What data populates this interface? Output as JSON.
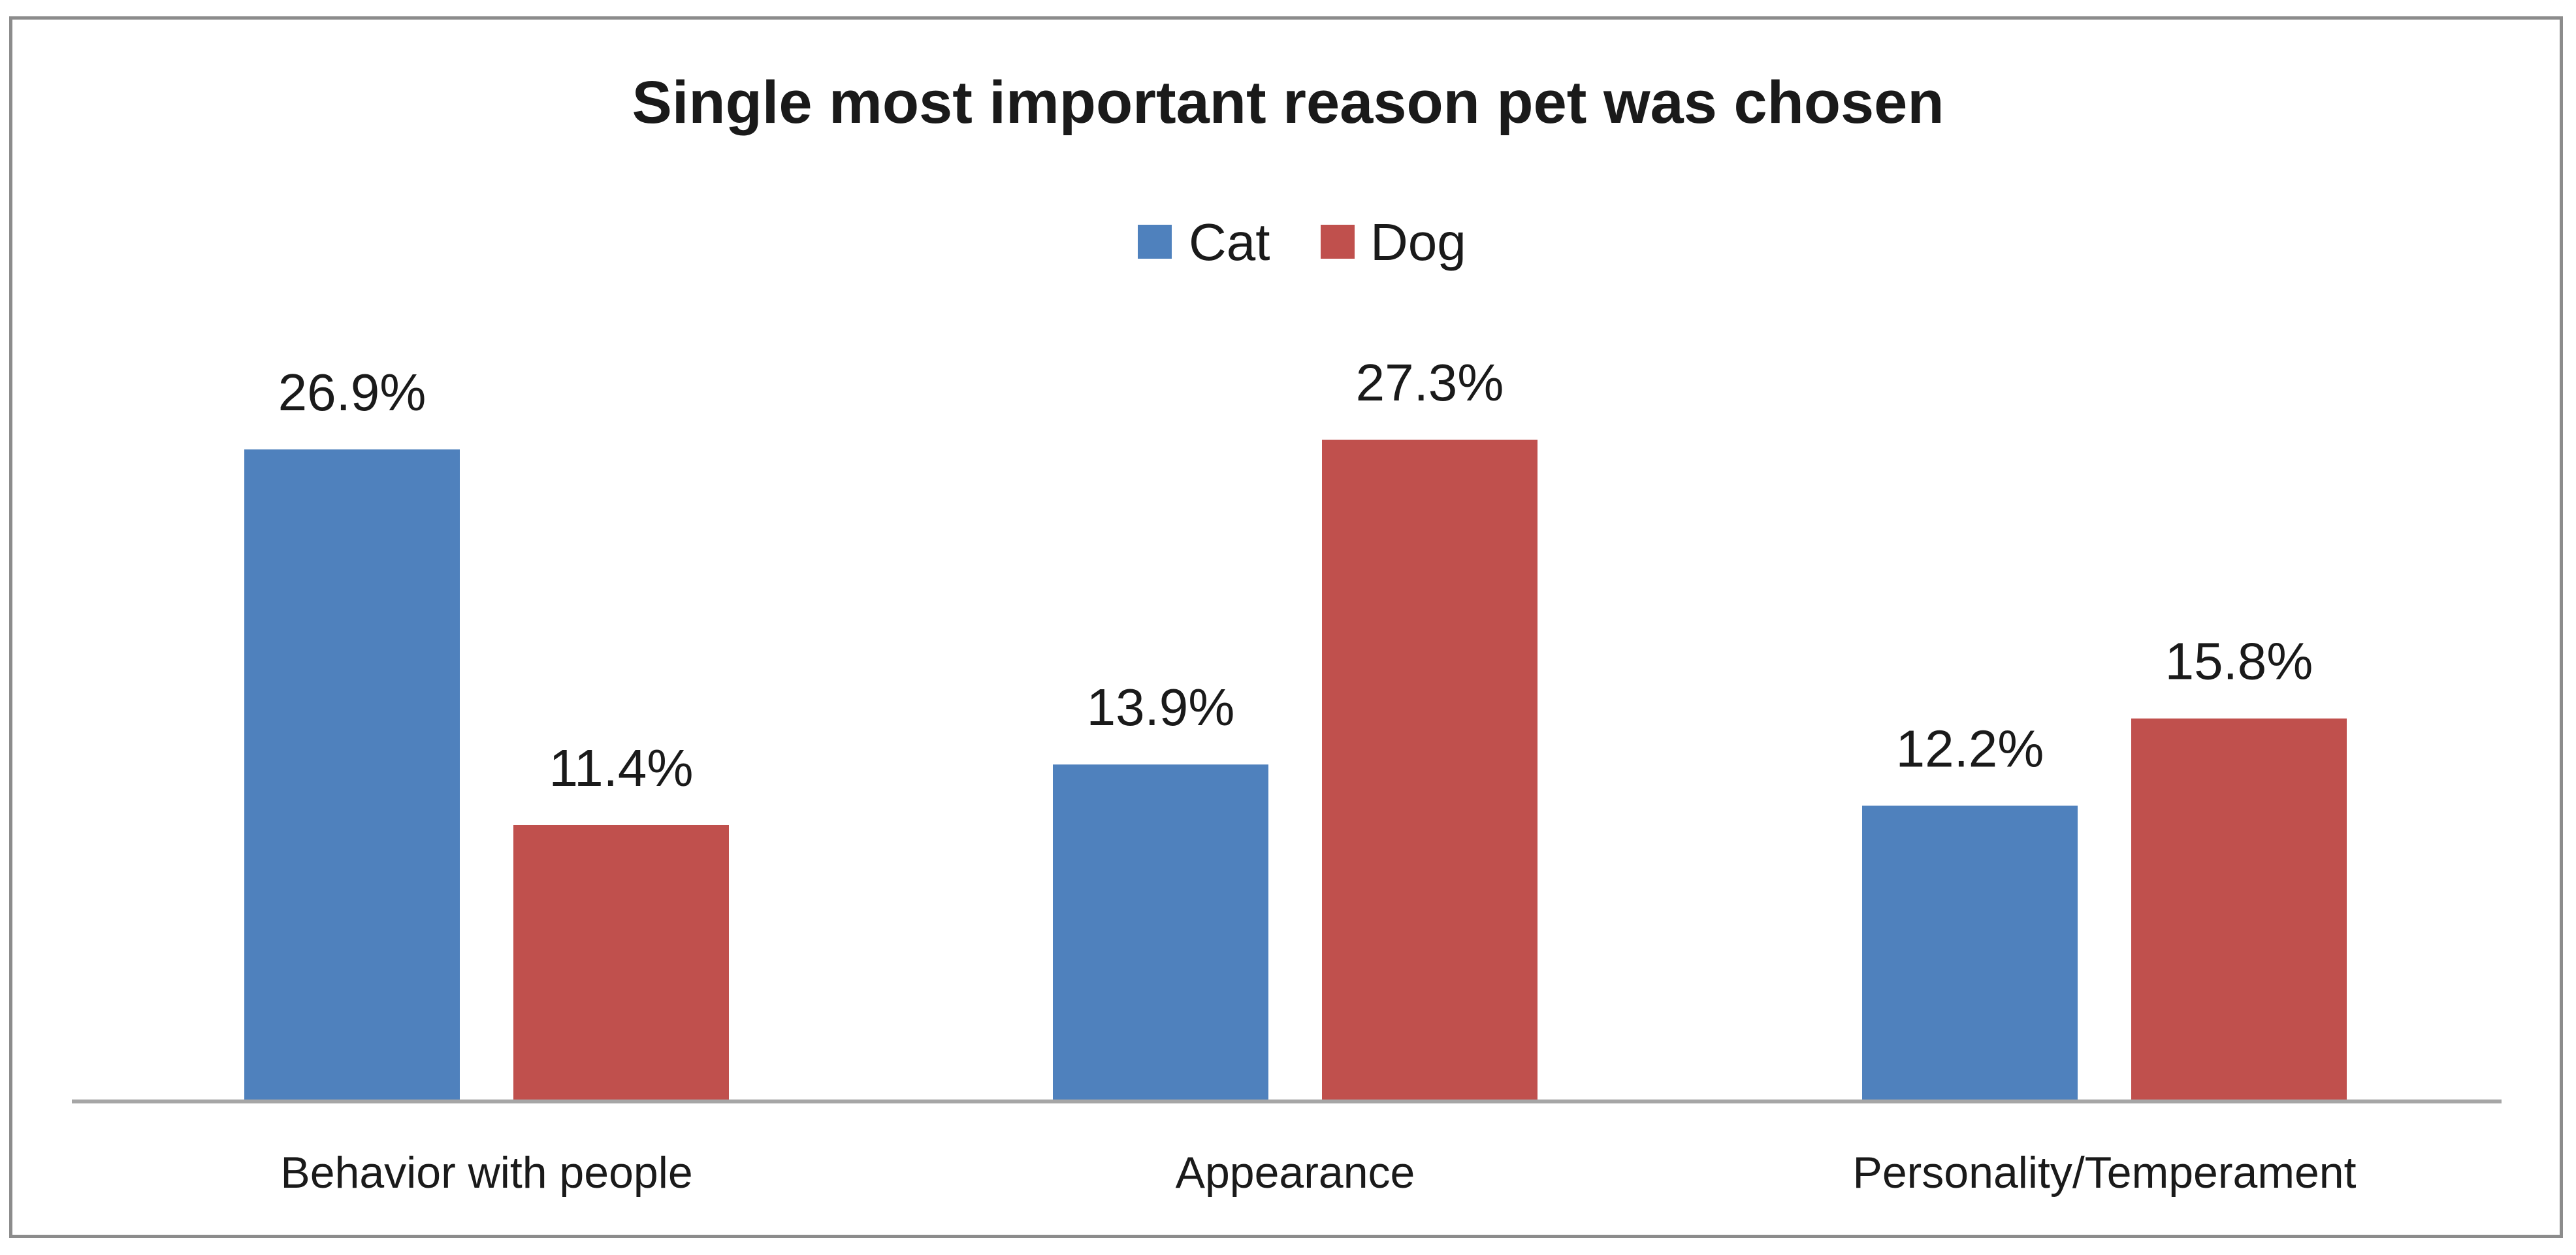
{
  "chart_data": {
    "type": "bar",
    "title": "Single most important reason pet was chosen",
    "categories": [
      "Behavior with people",
      "Appearance",
      "Personality/Temperament"
    ],
    "series": [
      {
        "name": "Cat",
        "color": "#4f81bd",
        "values": [
          26.9,
          13.9,
          12.2
        ],
        "labels": [
          "26.9%",
          "13.9%",
          "12.2%"
        ]
      },
      {
        "name": "Dog",
        "color": "#c0504d",
        "values": [
          11.4,
          27.3,
          15.8
        ],
        "labels": [
          "11.4%",
          "27.3%",
          "15.8%"
        ]
      }
    ],
    "xlabel": "",
    "ylabel": "",
    "ylim": [
      0,
      30
    ],
    "grid": false,
    "legend": "top-center"
  },
  "axis_color": "#a6a6a6"
}
